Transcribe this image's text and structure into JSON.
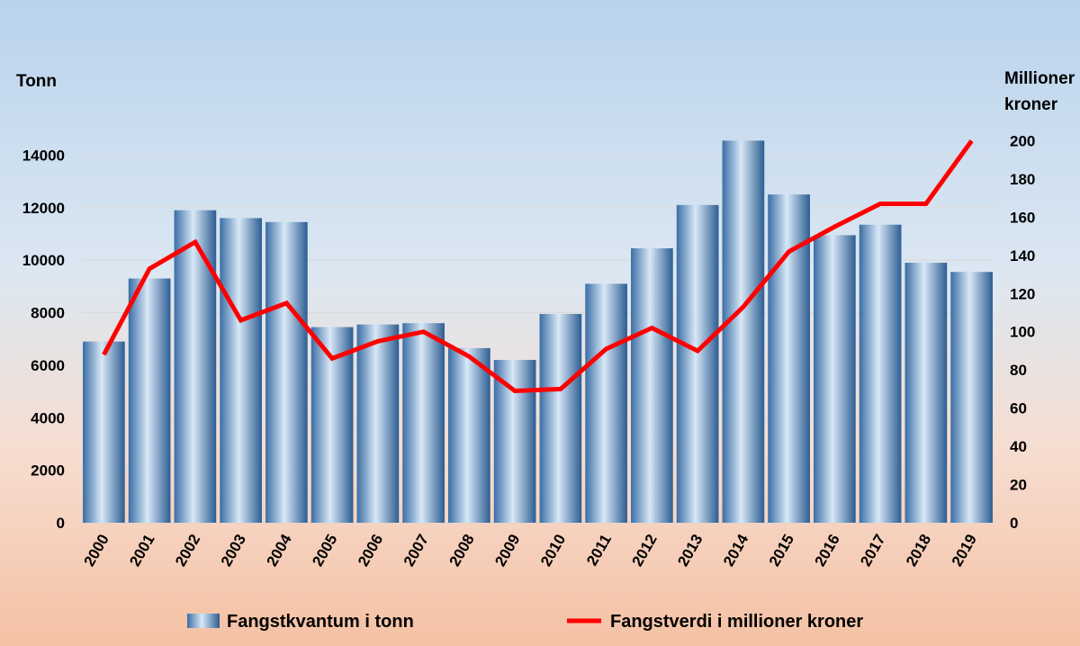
{
  "chart_data": {
    "type": "bar+line",
    "categories": [
      "2000",
      "2001",
      "2002",
      "2003",
      "2004",
      "2005",
      "2006",
      "2007",
      "2008",
      "2009",
      "2010",
      "2011",
      "2012",
      "2013",
      "2014",
      "2015",
      "2016",
      "2017",
      "2018",
      "2019"
    ],
    "series": [
      {
        "name": "Fangstkvantum i tonn",
        "type": "bar",
        "axis": "left",
        "values": [
          6900,
          9300,
          11900,
          11600,
          11450,
          7450,
          7550,
          7600,
          6650,
          6200,
          7950,
          9100,
          10450,
          12100,
          14550,
          12500,
          10950,
          11350,
          9900,
          9550
        ]
      },
      {
        "name": "Fangstverdi i millioner kroner",
        "type": "line",
        "axis": "right",
        "values": [
          88,
          133,
          147,
          106,
          115,
          86,
          95,
          100,
          87,
          69,
          70,
          91,
          102,
          90,
          113,
          142,
          155,
          167,
          167,
          200
        ]
      }
    ],
    "left_axis": {
      "label": "Tonn",
      "min": 0,
      "max": 16000,
      "ticks": [
        0,
        2000,
        4000,
        6000,
        8000,
        10000,
        12000,
        14000
      ]
    },
    "right_axis": {
      "label_lines": [
        "Millioner",
        "kroner"
      ],
      "min": 0,
      "max": 220,
      "ticks": [
        0,
        20,
        40,
        60,
        80,
        100,
        120,
        140,
        160,
        180,
        200
      ]
    },
    "grid": true,
    "legend_position": "bottom",
    "colors": {
      "bar_dark": "#2e5f93",
      "bar_light": "#d6e6f6",
      "line": "#ff0000",
      "grid": "#d9d9d9"
    }
  }
}
